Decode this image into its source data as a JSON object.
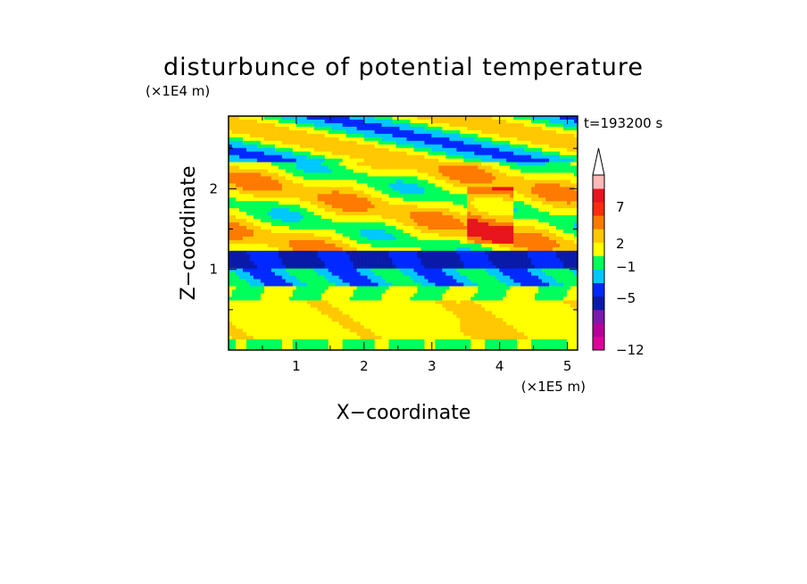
{
  "chart_data": {
    "type": "heatmap",
    "title": "disturbunce of potential temperature",
    "time_label": "t=193200 s",
    "xlabel": "X−coordinate",
    "ylabel": "Z−coordinate",
    "x_unit": "(×1E5 m)",
    "y_unit": "(×1E4 m)",
    "xlim": [
      0,
      5.15
    ],
    "ylim": [
      0,
      2.9
    ],
    "x_ticks": [
      "1",
      "2",
      "3",
      "4",
      "5"
    ],
    "y_ticks": [
      "1",
      "2"
    ],
    "colorbar": {
      "extend": "max",
      "tick_labels": [
        "7",
        "2",
        "−1",
        "−5",
        "−12"
      ],
      "colors": [
        "#e0009a",
        "#b4009a",
        "#7a1aa8",
        "#0a1aa8",
        "#0028ff",
        "#00c8ff",
        "#00ff5a",
        "#ffff00",
        "#ffc800",
        "#ff7a00",
        "#ff2a10",
        "#e8141e",
        "#ffb8b8"
      ]
    },
    "field_description_colors": {
      "background_dominant": "#ffff00",
      "warm": "#ffb000",
      "cool": "#00ff5a",
      "cold": "#0028ff"
    }
  }
}
